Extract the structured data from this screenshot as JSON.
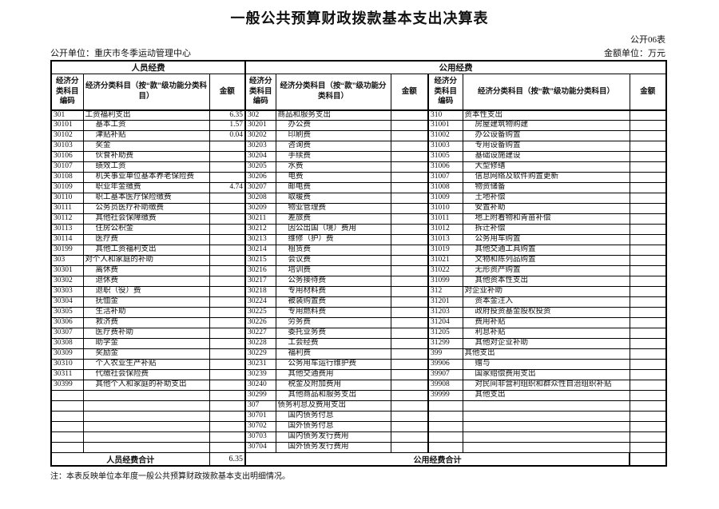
{
  "title": "一般公共预算财政拨款基本支出决算表",
  "table_no": "公开06表",
  "unit_label": "公开单位：重庆市冬季运动管理中心",
  "amount_unit": "金额单位：万元",
  "note": "注：本表反映单位本年度一般公共预算财政拨款基本支出明细情况。",
  "sections": {
    "personnel": "人员经费",
    "public": "公用经费"
  },
  "col_headers": {
    "code": "经济分类科目编码",
    "name": "经济分类科目（按“款”级功能分类科目）",
    "amount": "金额"
  },
  "totals": {
    "personnel_label": "人员经费合计",
    "personnel_amount": "6.35",
    "public_label": "公用经费合计",
    "public_amount": ""
  },
  "rows": [
    [
      "301",
      "工资福利支出",
      "6.35",
      "302",
      "商品和服务支出",
      "",
      "310",
      "资本性支出",
      ""
    ],
    [
      "30101",
      "基本工资",
      "1.57",
      "30201",
      "办公费",
      "",
      "31001",
      "房屋建筑物购建",
      ""
    ],
    [
      "30102",
      "津贴补贴",
      "0.04",
      "30202",
      "印刷费",
      "",
      "31002",
      "办公设备购置",
      ""
    ],
    [
      "30103",
      "奖金",
      "",
      "30203",
      "咨询费",
      "",
      "31003",
      "专用设备购置",
      ""
    ],
    [
      "30106",
      "伙食补助费",
      "",
      "30204",
      "手续费",
      "",
      "31005",
      "基础设施建设",
      ""
    ],
    [
      "30107",
      "绩效工资",
      "",
      "30205",
      "水费",
      "",
      "31006",
      "大型修缮",
      ""
    ],
    [
      "30108",
      "机关事业单位基本养老保险费",
      "",
      "30206",
      "电费",
      "",
      "31007",
      "信息网络及软件购置更新",
      ""
    ],
    [
      "30109",
      "职业年金缴费",
      "4.74",
      "30207",
      "邮电费",
      "",
      "31008",
      "物资储备",
      ""
    ],
    [
      "30110",
      "职工基本医疗保险缴费",
      "",
      "30208",
      "取暖费",
      "",
      "31009",
      "土地补偿",
      ""
    ],
    [
      "30111",
      "公务员医疗补助缴费",
      "",
      "30209",
      "物业管理费",
      "",
      "31010",
      "安置补助",
      ""
    ],
    [
      "30112",
      "其他社会保障缴费",
      "",
      "30211",
      "差旅费",
      "",
      "31011",
      "地上附着物和青苗补偿",
      ""
    ],
    [
      "30113",
      "住房公积金",
      "",
      "30212",
      "因公出国（境）费用",
      "",
      "31012",
      "拆迁补偿",
      ""
    ],
    [
      "30114",
      "医疗费",
      "",
      "30213",
      "维修（护）费",
      "",
      "31013",
      "公务用车购置",
      ""
    ],
    [
      "30199",
      "其他工资福利支出",
      "",
      "30214",
      "租赁费",
      "",
      "31019",
      "其他交通工具购置",
      ""
    ],
    [
      "303",
      "对个人和家庭的补助",
      "",
      "30215",
      "会议费",
      "",
      "31021",
      "文物和陈列品购置",
      ""
    ],
    [
      "30301",
      "离休费",
      "",
      "30216",
      "培训费",
      "",
      "31022",
      "无形资产购置",
      ""
    ],
    [
      "30302",
      "退休费",
      "",
      "30217",
      "公务接待费",
      "",
      "31099",
      "其他资本性支出",
      ""
    ],
    [
      "30303",
      "退职（役）费",
      "",
      "30218",
      "专用材料费",
      "",
      "312",
      "对企业补助",
      ""
    ],
    [
      "30304",
      "抚恤金",
      "",
      "30224",
      "被装购置费",
      "",
      "31201",
      "资本金注入",
      ""
    ],
    [
      "30305",
      "生活补助",
      "",
      "30225",
      "专用燃料费",
      "",
      "31203",
      "政府投资基金股权投资",
      ""
    ],
    [
      "30306",
      "救济费",
      "",
      "30226",
      "劳务费",
      "",
      "31204",
      "费用补贴",
      ""
    ],
    [
      "30307",
      "医疗费补助",
      "",
      "30227",
      "委托业务费",
      "",
      "31205",
      "利息补贴",
      ""
    ],
    [
      "30308",
      "助学金",
      "",
      "30228",
      "工会经费",
      "",
      "31299",
      "其他对企业补助",
      ""
    ],
    [
      "30309",
      "奖励金",
      "",
      "30229",
      "福利费",
      "",
      "399",
      "其他支出",
      ""
    ],
    [
      "30310",
      "个人农业生产补贴",
      "",
      "30231",
      "公务用车运行维护费",
      "",
      "39906",
      "赠与",
      ""
    ],
    [
      "30311",
      "代缴社会保险费",
      "",
      "30239",
      "其他交通费用",
      "",
      "39907",
      "国家赔偿费用支出",
      ""
    ],
    [
      "30399",
      "其他个人和家庭的补助支出",
      "",
      "30240",
      "税金及附加费用",
      "",
      "39908",
      "对民间非营利组织和群众性自治组织补贴",
      ""
    ],
    [
      "",
      "",
      "",
      "30299",
      "其他商品和服务支出",
      "",
      "39999",
      "其他支出",
      ""
    ],
    [
      "",
      "",
      "",
      "307",
      "债务利息及费用支出",
      "",
      "",
      "",
      ""
    ],
    [
      "",
      "",
      "",
      "30701",
      "国内债务付息",
      "",
      "",
      "",
      ""
    ],
    [
      "",
      "",
      "",
      "30702",
      "国外债务付息",
      "",
      "",
      "",
      ""
    ],
    [
      "",
      "",
      "",
      "30703",
      "国内债务发行费用",
      "",
      "",
      "",
      ""
    ],
    [
      "",
      "",
      "",
      "30704",
      "国外债务发行费用",
      "",
      "",
      "",
      ""
    ]
  ]
}
